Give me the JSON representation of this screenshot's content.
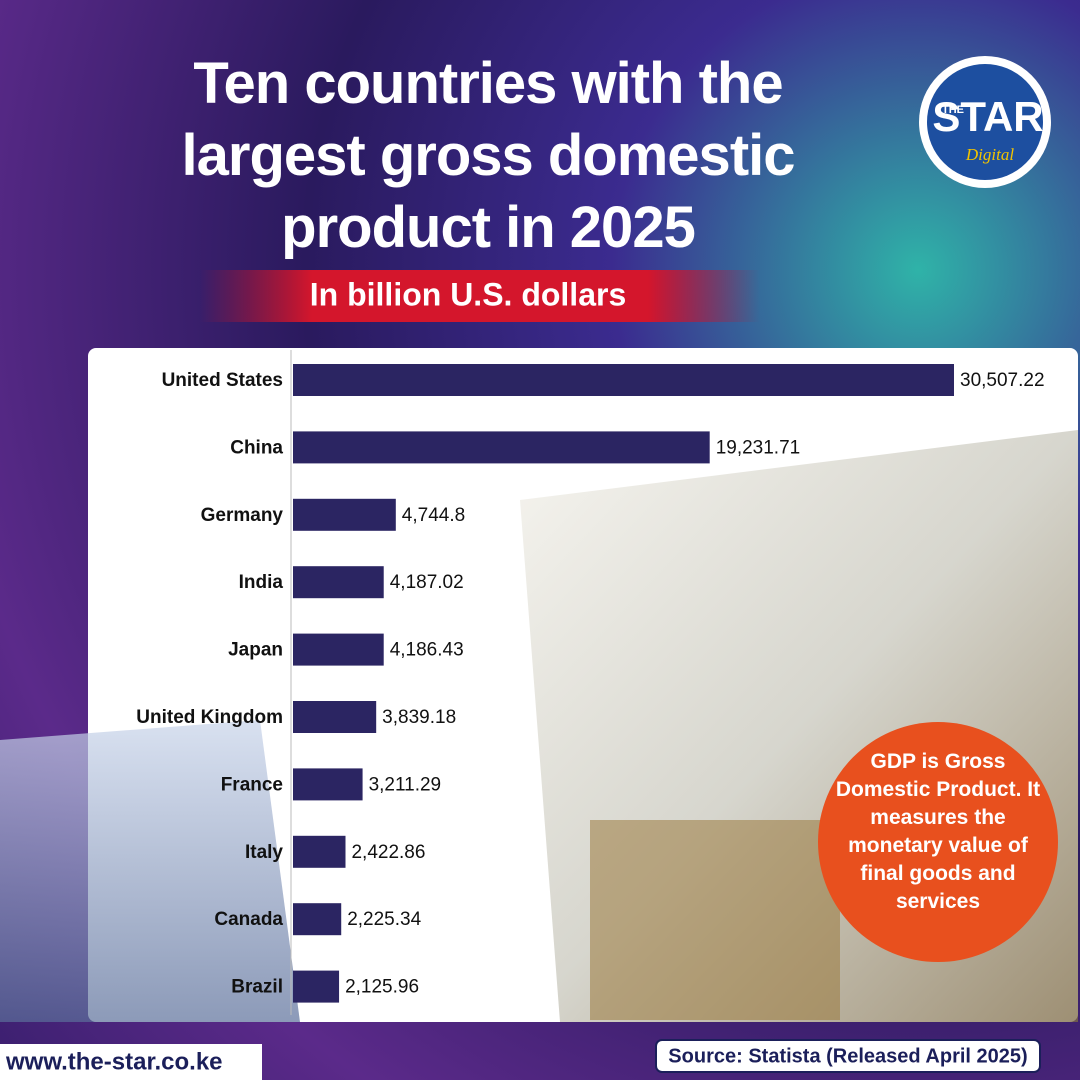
{
  "chart_data": {
    "type": "bar",
    "orientation": "horizontal",
    "title": "Ten countries with the largest gross domestic product in 2025",
    "subtitle": "In billion U.S. dollars",
    "categories": [
      "United States",
      "China",
      "Germany",
      "India",
      "Japan",
      "United Kingdom",
      "France",
      "Italy",
      "Canada",
      "Brazil"
    ],
    "values": [
      30507.22,
      19231.71,
      4744.8,
      4187.02,
      4186.43,
      3839.18,
      3211.29,
      2422.86,
      2225.34,
      2125.96
    ],
    "value_labels": [
      "30,507.22",
      "19,231.71",
      "4,744.8",
      "4,187.02",
      "4,186.43",
      "3,839.18",
      "3,211.29",
      "2,422.86",
      "2,225.34",
      "2,125.96"
    ],
    "color": "#2b2562",
    "note": "GDP is Gross Domestic Product. It measures the monetary value of final goods and services",
    "source": "Source: Statista (Released April 2025)"
  },
  "logo": {
    "top": "THE",
    "main": "STAR",
    "sub": "Digital"
  },
  "website": "www.the-star.co.ke"
}
